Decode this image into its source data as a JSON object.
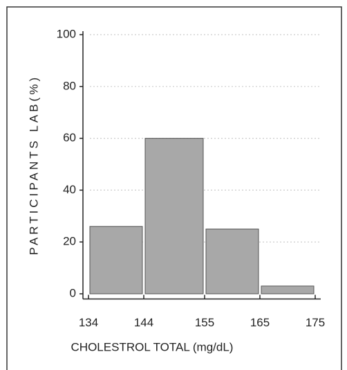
{
  "chart_data": {
    "type": "histogram",
    "xlabel": "CHOLESTROL TOTAL  (mg/dL)",
    "ylabel": "PARTICIPANTS LAB(%)",
    "bins": [
      134,
      144,
      155,
      165,
      175
    ],
    "values": [
      26,
      60,
      25,
      3
    ],
    "color": "#a8a8a8",
    "xlim": [
      133,
      176
    ],
    "xticks": [
      134,
      144,
      155,
      165,
      175
    ],
    "ylim": [
      -2,
      100
    ],
    "yticks": [
      0,
      20,
      40,
      60,
      80,
      100
    ],
    "grid": true
  }
}
